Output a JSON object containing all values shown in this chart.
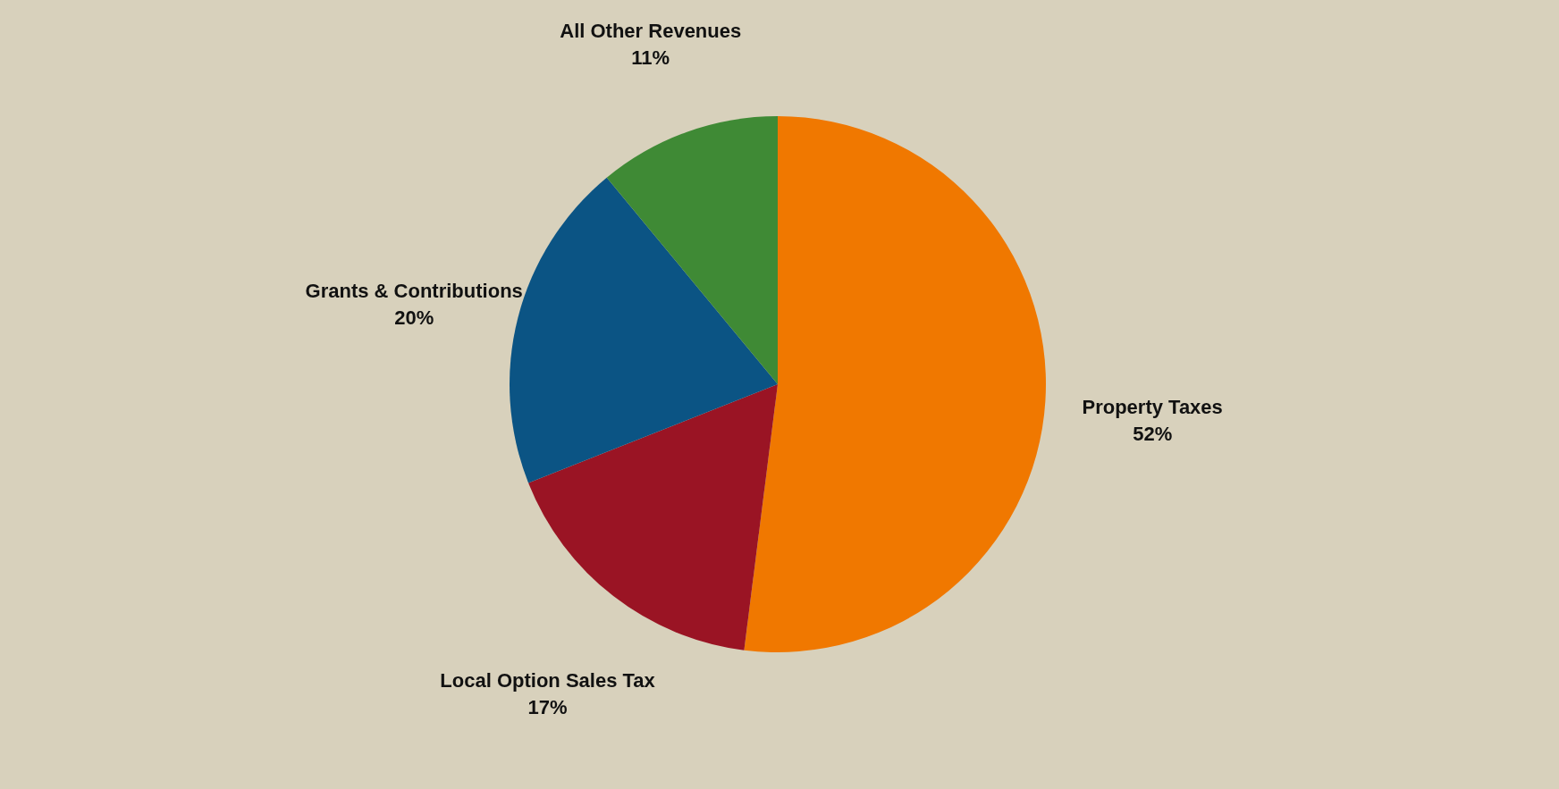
{
  "chart_data": {
    "type": "pie",
    "categories": [
      "Property Taxes",
      "Local Option Sales Tax",
      "Grants & Contributions",
      "All Other Revenues"
    ],
    "values": [
      52,
      17,
      20,
      11
    ],
    "value_labels": [
      "52%",
      "17%",
      "20%",
      "11%"
    ],
    "colors": [
      "#f07800",
      "#9a1424",
      "#0b5484",
      "#3f8a35"
    ],
    "legend": false
  }
}
